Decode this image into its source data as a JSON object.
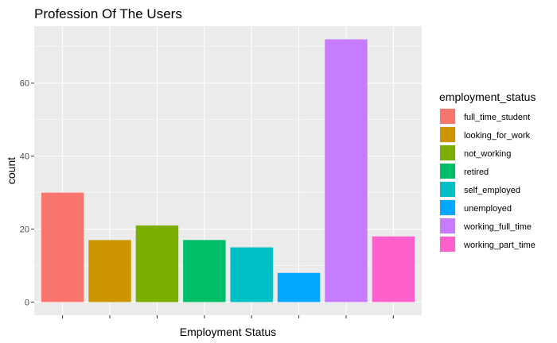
{
  "chart_data": {
    "type": "bar",
    "title": "Profession Of The Users",
    "xlabel": "Employment Status",
    "ylabel": "count",
    "categories": [
      "full_time_student",
      "looking_for_work",
      "not_working",
      "retired",
      "self_employed",
      "unemployed",
      "working_full_time",
      "working_part_time"
    ],
    "x_tick_labels": [
      "",
      "",
      "",
      "",
      "",
      "",
      "",
      ""
    ],
    "values": [
      30,
      17,
      21,
      17,
      15,
      8,
      72,
      18
    ],
    "colors": [
      "#F8766D",
      "#CD9600",
      "#7CAE00",
      "#00BE67",
      "#00BFC4",
      "#00A9FF",
      "#C77CFF",
      "#FF61CC"
    ],
    "ylim": [
      -3.6,
      75.6
    ],
    "yticks": [
      0,
      20,
      40,
      60
    ],
    "ytick_labels": [
      "0",
      "20",
      "40",
      "60"
    ],
    "grid": true,
    "legend": {
      "title": "employment_status",
      "position": "right",
      "labels": [
        "full_time_student",
        "looking_for_work",
        "not_working",
        "retired",
        "self_employed",
        "unemployed",
        "working_full_time",
        "working_part_time"
      ]
    },
    "panel_background": "#EBEBEB",
    "grid_color": "#FFFFFF"
  }
}
